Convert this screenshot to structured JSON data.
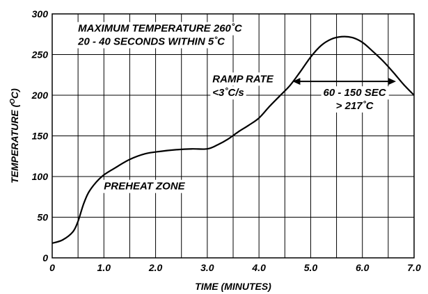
{
  "chart_data": {
    "type": "line",
    "xlabel": "TIME (MINUTES)",
    "ylabel_prefix": "TEMPERATURE (",
    "ylabel_sup": "O",
    "ylabel_suffix": "C)",
    "xlim": [
      0,
      7.0
    ],
    "ylim": [
      0,
      300
    ],
    "grid": true,
    "x_ticks": [
      0,
      0.5,
      1.0,
      1.5,
      2.0,
      2.5,
      3.0,
      3.5,
      4.0,
      4.5,
      5.0,
      5.5,
      6.0,
      6.5,
      7.0
    ],
    "x_tick_labels": [
      {
        "x": 0,
        "label": "0"
      },
      {
        "x": 1.0,
        "label": "1.0"
      },
      {
        "x": 2.0,
        "label": "2.0"
      },
      {
        "x": 3.0,
        "label": "3.0"
      },
      {
        "x": 4.0,
        "label": "4.0"
      },
      {
        "x": 5.0,
        "label": "5.0"
      },
      {
        "x": 6.0,
        "label": "6.0"
      },
      {
        "x": 7.0,
        "label": "7.0"
      }
    ],
    "y_ticks": [
      0,
      50,
      100,
      150,
      200,
      250,
      300
    ],
    "y_tick_labels": [
      "0",
      "50",
      "100",
      "150",
      "200",
      "250",
      "300"
    ],
    "series": [
      {
        "x": [
          0,
          0.2,
          0.4,
          0.5,
          0.6,
          0.7,
          0.85,
          1.0,
          1.2,
          1.5,
          1.8,
          2.1,
          2.4,
          2.7,
          3.0,
          3.2,
          3.4,
          3.6,
          3.8,
          4.0,
          4.2,
          4.4,
          4.6,
          4.8,
          5.0,
          5.2,
          5.4,
          5.6,
          5.8,
          6.0,
          6.2,
          6.4,
          6.6,
          6.8,
          7.0
        ],
        "y": [
          18,
          22,
          32,
          45,
          65,
          80,
          93,
          102,
          110,
          121,
          128,
          131,
          133,
          134,
          134,
          139,
          146,
          155,
          163,
          172,
          186,
          199,
          212,
          229,
          247,
          261,
          269,
          272,
          271,
          265,
          254,
          242,
          228,
          213,
          200
        ]
      }
    ],
    "annotations": [
      {
        "text": "MAXIMUM TEMPERATURE 260˚C",
        "x": 0.5,
        "y": 278
      },
      {
        "text": "20 - 40 SECONDS WITHIN 5˚C",
        "x": 0.5,
        "y": 262
      },
      {
        "text": "RAMP RATE",
        "x": 3.1,
        "y": 216
      },
      {
        "text": "<3˚C/s",
        "x": 3.1,
        "y": 199
      },
      {
        "text": "PREHEAT ZONE",
        "x": 1.0,
        "y": 84
      },
      {
        "text": "60 - 150 SEC",
        "x": 5.85,
        "y": 199
      },
      {
        "text": "> 217˚C",
        "x": 5.85,
        "y": 183
      }
    ],
    "arrow": {
      "x_start": 4.65,
      "x_end": 6.65,
      "y": 217
    }
  }
}
